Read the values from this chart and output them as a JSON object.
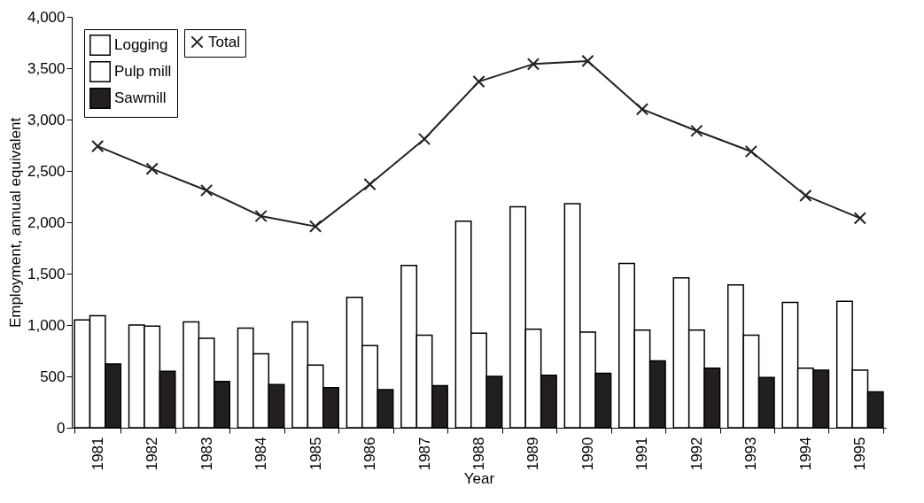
{
  "chart_data": {
    "type": "bar",
    "xlabel": "Year",
    "ylabel": "Employment, annual equivalent",
    "categories": [
      "1981",
      "1982",
      "1983",
      "1984",
      "1985",
      "1986",
      "1987",
      "1988",
      "1989",
      "1990",
      "1991",
      "1992",
      "1993",
      "1994",
      "1995"
    ],
    "series": [
      {
        "name": "Logging",
        "color": "#ffffff",
        "values": [
          1050,
          1000,
          1030,
          970,
          1030,
          1270,
          1580,
          2010,
          2150,
          2180,
          1600,
          1460,
          1390,
          1220,
          1230
        ]
      },
      {
        "name": "Pulp mill",
        "color": "#ffffff",
        "values": [
          1090,
          990,
          870,
          720,
          610,
          800,
          900,
          920,
          960,
          930,
          950,
          950,
          900,
          580,
          560
        ]
      },
      {
        "name": "Sawmill",
        "color": "#231f20",
        "values": [
          620,
          550,
          450,
          420,
          390,
          370,
          410,
          500,
          510,
          530,
          650,
          580,
          490,
          560,
          350
        ]
      },
      {
        "name": "Total",
        "type": "line",
        "color": "#231f20",
        "marker": "cross",
        "line_style": "solid",
        "values": [
          2740,
          2520,
          2310,
          2060,
          1960,
          2370,
          2810,
          3370,
          3540,
          3570,
          3100,
          2890,
          2690,
          2260,
          2040
        ]
      }
    ],
    "ylim": [
      0,
      4000
    ],
    "yticks": [
      {
        "value": 0,
        "label": "0"
      },
      {
        "value": 500,
        "label": "500"
      },
      {
        "value": 1000,
        "label": "1,000"
      },
      {
        "value": 1500,
        "label": "1,500"
      },
      {
        "value": 2000,
        "label": "2,000"
      },
      {
        "value": 2500,
        "label": "2,500"
      },
      {
        "value": 3000,
        "label": "3,000"
      },
      {
        "value": 3500,
        "label": "3,500"
      },
      {
        "value": 4000,
        "label": "4,000"
      }
    ],
    "grid": false,
    "legend": "top left"
  }
}
